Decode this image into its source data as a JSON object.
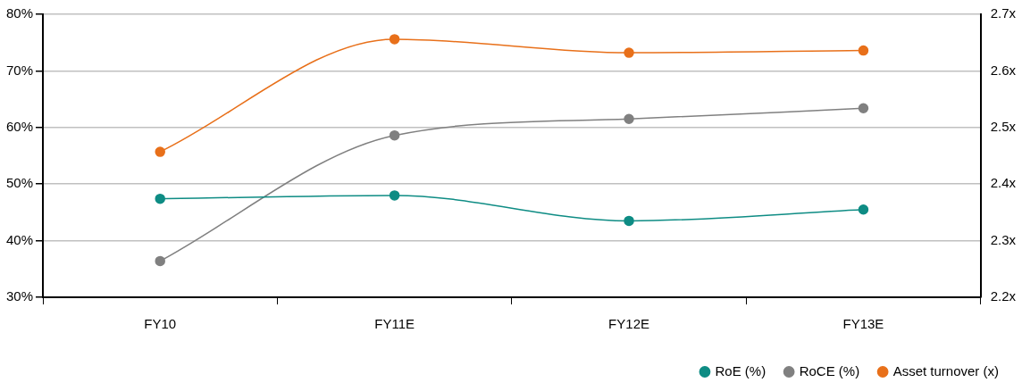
{
  "chart_data": {
    "type": "line",
    "categories": [
      "FY10",
      "FY11E",
      "FY12E",
      "FY13E"
    ],
    "series": [
      {
        "name": "RoE (%)",
        "color": "#0e8c84",
        "values": [
          47.4,
          48.0,
          43.5,
          45.5
        ]
      },
      {
        "name": "RoCE (%)",
        "color": "#808080",
        "values": [
          36.4,
          58.6,
          61.5,
          63.4
        ]
      },
      {
        "name": "Asset turnover (x)",
        "color": "#e8701a",
        "values": [
          2.457,
          2.656,
          2.632,
          2.636
        ],
        "axis": "y2"
      }
    ],
    "ylim": [
      30,
      80
    ],
    "yticks": [
      {
        "value": 30,
        "label": "30%"
      },
      {
        "value": 40,
        "label": "40%"
      },
      {
        "value": 50,
        "label": "50%"
      },
      {
        "value": 60,
        "label": "60%"
      },
      {
        "value": 70,
        "label": "70%"
      },
      {
        "value": 80,
        "label": "80%"
      }
    ],
    "y2lim": [
      2.2,
      2.7
    ],
    "y2ticks": [
      {
        "value": 2.2,
        "label": "2.2x"
      },
      {
        "value": 2.3,
        "label": "2.3x"
      },
      {
        "value": 2.4,
        "label": "2.4x"
      },
      {
        "value": 2.5,
        "label": "2.5x"
      },
      {
        "value": 2.6,
        "label": "2.6x"
      },
      {
        "value": 2.7,
        "label": "2.7x"
      }
    ],
    "grid": "y",
    "legend": "bottom right",
    "marker": "circle",
    "line_style": "solid"
  }
}
